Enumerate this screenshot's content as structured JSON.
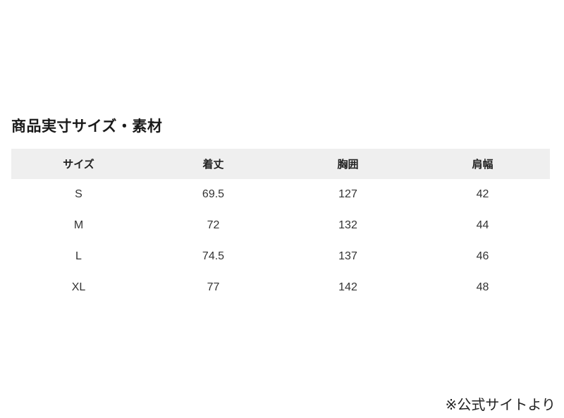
{
  "title": "商品実寸サイズ・素材",
  "table": {
    "headers": [
      "サイズ",
      "着丈",
      "胸囲",
      "肩幅"
    ],
    "rows": [
      [
        "S",
        "69.5",
        "127",
        "42"
      ],
      [
        "M",
        "72",
        "132",
        "44"
      ],
      [
        "L",
        "74.5",
        "137",
        "46"
      ],
      [
        "XL",
        "77",
        "142",
        "48"
      ]
    ]
  },
  "note": "※公式サイトより"
}
